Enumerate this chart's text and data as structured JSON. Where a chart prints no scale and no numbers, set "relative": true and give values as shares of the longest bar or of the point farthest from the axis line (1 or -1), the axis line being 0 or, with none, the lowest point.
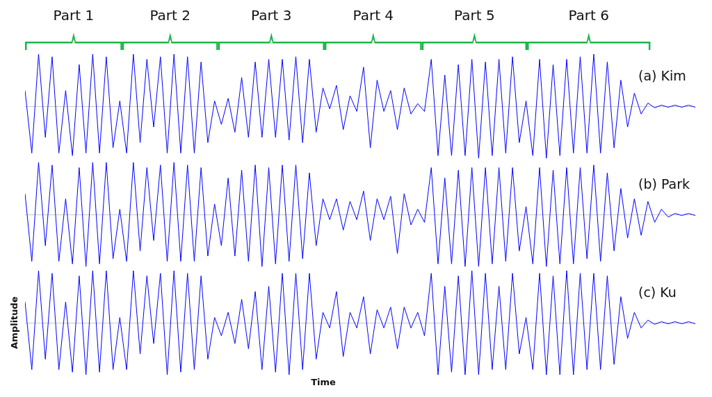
{
  "chart_data": [
    {
      "type": "line",
      "relative": true,
      "annotations": [
        "Part 1",
        "Part 2",
        "Part 3",
        "Part 4",
        "Part 5",
        "Part 6",
        "(a) Kim"
      ],
      "categories": [
        null,
        null,
        null,
        null,
        null,
        null,
        null,
        null,
        null,
        null,
        null,
        null,
        null,
        null,
        null,
        null,
        null,
        null,
        null,
        null,
        null,
        null,
        null,
        null,
        null,
        null,
        null,
        null,
        null,
        null,
        null,
        null,
        null,
        null,
        null,
        null,
        null,
        null,
        null,
        null,
        null,
        null,
        null,
        null,
        null,
        null,
        null,
        null,
        null,
        null,
        null,
        null,
        null,
        null,
        null,
        null,
        null,
        null,
        null,
        null,
        null,
        null,
        null,
        null,
        null,
        null,
        null,
        null,
        null,
        null,
        null,
        null,
        null,
        null,
        null,
        null,
        null,
        null,
        null,
        null,
        null,
        null,
        null,
        null,
        null,
        null,
        null,
        null,
        null,
        null,
        null,
        null,
        null,
        null,
        null,
        null,
        null,
        null,
        null,
        null
      ],
      "series": [
        {
          "color": "#0000ff",
          "values": [
            0.3,
            -0.9,
            1,
            -0.6,
            0.95,
            -0.9,
            0.3,
            -0.95,
            0.8,
            -0.9,
            1,
            -0.9,
            0.95,
            -0.8,
            0.1,
            -0.9,
            1,
            -0.7,
            0.9,
            -0.4,
            0.95,
            -0.9,
            1,
            -0.9,
            0.95,
            -0.9,
            0.85,
            -0.7,
            0.1,
            -0.35,
            0.15,
            -0.5,
            0.55,
            -0.6,
            0.85,
            -0.6,
            0.9,
            -0.6,
            0.9,
            -0.65,
            0.95,
            -0.7,
            0.9,
            -0.5,
            0.35,
            -0.05,
            0.4,
            -0.45,
            0.2,
            -0.1,
            0.75,
            -0.8,
            0.5,
            -0.1,
            0.3,
            -0.45,
            0.35,
            -0.15,
            0.05,
            -0.1,
            0.9,
            -0.95,
            0.6,
            -0.95,
            0.8,
            -0.95,
            0.9,
            -1,
            0.85,
            -0.95,
            0.9,
            -0.9,
            0.95,
            -0.7,
            0.1,
            -0.95,
            0.9,
            -1,
            0.8,
            -0.95,
            0.9,
            -0.9,
            0.95,
            -0.9,
            1,
            -0.9,
            0.85,
            -0.8,
            0.5,
            -0.4,
            0.25,
            -0.15,
            0.06,
            -0.03,
            0.02,
            -0.02,
            0.02,
            -0.02,
            0.02,
            -0.02
          ]
        }
      ]
    },
    {
      "type": "line",
      "relative": true,
      "annotations": [
        "(b) Park"
      ],
      "categories": [
        null,
        null,
        null,
        null,
        null,
        null,
        null,
        null,
        null,
        null,
        null,
        null,
        null,
        null,
        null,
        null,
        null,
        null,
        null,
        null,
        null,
        null,
        null,
        null,
        null,
        null,
        null,
        null,
        null,
        null,
        null,
        null,
        null,
        null,
        null,
        null,
        null,
        null,
        null,
        null,
        null,
        null,
        null,
        null,
        null,
        null,
        null,
        null,
        null,
        null,
        null,
        null,
        null,
        null,
        null,
        null,
        null,
        null,
        null,
        null,
        null,
        null,
        null,
        null,
        null,
        null,
        null,
        null,
        null,
        null,
        null,
        null,
        null,
        null,
        null,
        null,
        null,
        null,
        null,
        null,
        null,
        null,
        null,
        null,
        null,
        null,
        null,
        null,
        null,
        null,
        null,
        null,
        null,
        null,
        null,
        null,
        null,
        null,
        null,
        null
      ],
      "series": [
        {
          "color": "#0000ff",
          "values": [
            0.4,
            -0.9,
            1,
            -0.6,
            0.95,
            -0.9,
            0.3,
            -0.95,
            0.9,
            -1,
            1,
            -0.95,
            1,
            -0.85,
            0.1,
            -0.9,
            1,
            -0.7,
            0.9,
            -0.5,
            0.95,
            -0.9,
            1,
            -0.9,
            0.95,
            -0.9,
            0.9,
            -0.8,
            0.2,
            -0.6,
            0.7,
            -0.8,
            0.85,
            -0.9,
            0.95,
            -1,
            0.9,
            -0.95,
            0.95,
            -0.9,
            0.95,
            -0.85,
            0.8,
            -0.6,
            0.3,
            -0.1,
            0.3,
            -0.3,
            0.25,
            -0.1,
            0.45,
            -0.5,
            0.3,
            -0.1,
            0.35,
            -0.75,
            0.4,
            -0.2,
            0.1,
            -0.15,
            0.9,
            -0.95,
            0.7,
            -0.95,
            0.85,
            -1,
            0.9,
            -1,
            0.9,
            -0.95,
            0.9,
            -0.9,
            0.9,
            -0.7,
            0.15,
            -0.95,
            0.9,
            -1,
            0.85,
            -0.95,
            0.9,
            -0.95,
            0.9,
            -0.85,
            0.95,
            -0.9,
            0.8,
            -0.7,
            0.5,
            -0.45,
            0.3,
            -0.4,
            0.25,
            -0.15,
            0.1,
            -0.05,
            0.02,
            -0.02,
            0.02,
            -0.02
          ]
        }
      ]
    },
    {
      "type": "line",
      "relative": true,
      "xlabel": "Time",
      "ylabel": "Amplitude",
      "annotations": [
        "(c) Ku"
      ],
      "categories": [
        null,
        null,
        null,
        null,
        null,
        null,
        null,
        null,
        null,
        null,
        null,
        null,
        null,
        null,
        null,
        null,
        null,
        null,
        null,
        null,
        null,
        null,
        null,
        null,
        null,
        null,
        null,
        null,
        null,
        null,
        null,
        null,
        null,
        null,
        null,
        null,
        null,
        null,
        null,
        null,
        null,
        null,
        null,
        null,
        null,
        null,
        null,
        null,
        null,
        null,
        null,
        null,
        null,
        null,
        null,
        null,
        null,
        null,
        null,
        null,
        null,
        null,
        null,
        null,
        null,
        null,
        null,
        null,
        null,
        null,
        null,
        null,
        null,
        null,
        null,
        null,
        null,
        null,
        null,
        null,
        null,
        null,
        null,
        null,
        null,
        null,
        null,
        null,
        null,
        null,
        null,
        null,
        null,
        null,
        null,
        null,
        null,
        null,
        null,
        null
      ],
      "series": [
        {
          "color": "#0000ff",
          "values": [
            0.4,
            -0.9,
            1,
            -0.7,
            0.95,
            -0.9,
            0.4,
            -0.95,
            0.9,
            -1,
            1,
            -0.95,
            1,
            -0.9,
            0.1,
            -0.9,
            1,
            -0.6,
            0.9,
            -0.4,
            0.95,
            -1,
            1,
            -0.95,
            0.95,
            -0.9,
            0.9,
            -0.7,
            0.1,
            -0.25,
            0.2,
            -0.4,
            0.45,
            -0.5,
            0.6,
            -0.9,
            0.7,
            -0.95,
            0.95,
            -1,
            0.95,
            -0.9,
            0.95,
            -0.7,
            0.2,
            -0.1,
            0.6,
            -0.65,
            0.2,
            -0.1,
            0.5,
            -0.6,
            0.25,
            -0.1,
            0.3,
            -0.5,
            0.3,
            -0.1,
            0.2,
            -0.25,
            0.95,
            -1,
            0.7,
            -0.95,
            0.9,
            -1,
            1,
            -1,
            0.95,
            -0.9,
            0.7,
            -0.9,
            0.95,
            -0.6,
            0.1,
            -0.9,
            0.95,
            -1,
            0.9,
            -1,
            1,
            -1,
            0.95,
            -0.9,
            0.95,
            -0.9,
            0.9,
            -0.8,
            0.5,
            -0.3,
            0.2,
            -0.1,
            0.05,
            -0.03,
            0.02,
            -0.02,
            0.02,
            -0.02,
            0.02,
            -0.02
          ]
        }
      ]
    }
  ]
}
